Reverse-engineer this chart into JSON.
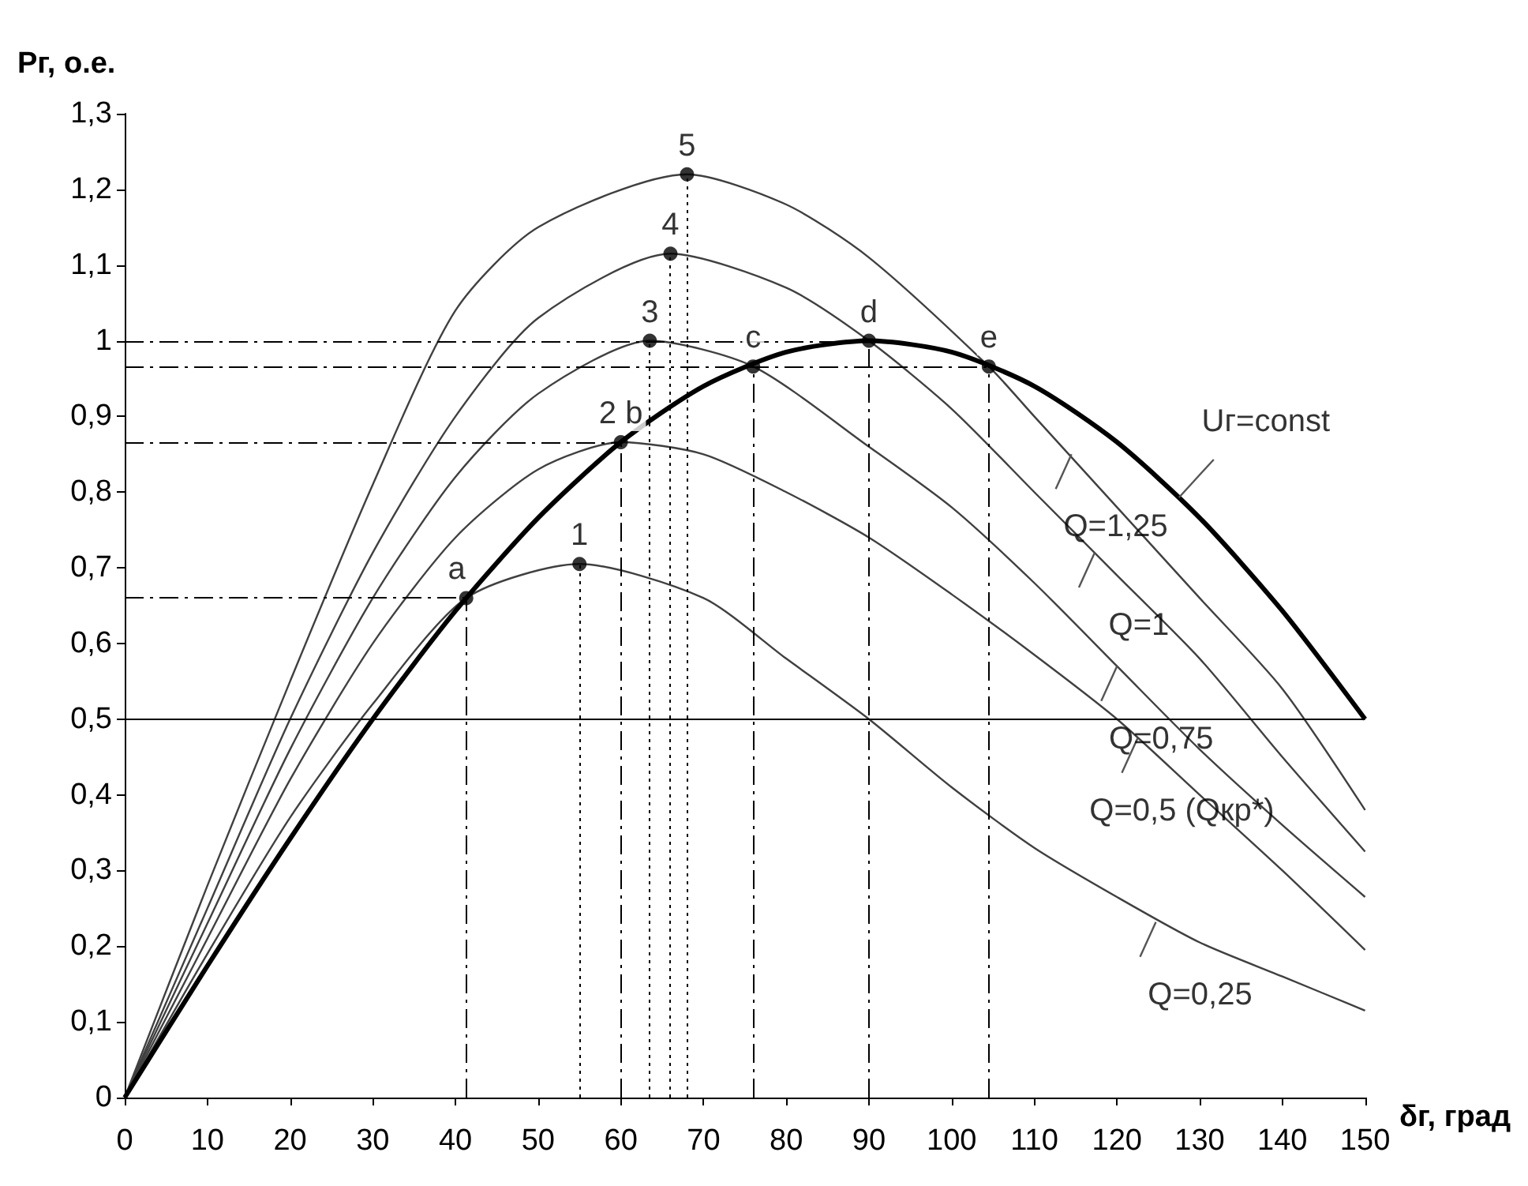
{
  "chart_data": {
    "type": "line",
    "ylabel": "Pг, о.е.",
    "xlabel": "δг, град",
    "xlim": [
      0,
      150
    ],
    "xticks": [
      0,
      10,
      20,
      30,
      40,
      50,
      60,
      70,
      80,
      90,
      100,
      110,
      120,
      130,
      140,
      150
    ],
    "ylim": [
      0,
      1.3
    ],
    "yticks": [
      0,
      {
        "value": 0.1,
        "label": "0,1"
      },
      {
        "value": 0.2,
        "label": "0,2"
      },
      {
        "value": 0.3,
        "label": "0,3"
      },
      {
        "value": 0.4,
        "label": "0,4"
      },
      {
        "value": 0.5,
        "label": "0,5"
      },
      {
        "value": 0.6,
        "label": "0,6"
      },
      {
        "value": 0.7,
        "label": "0,7"
      },
      {
        "value": 0.8,
        "label": "0,8"
      },
      {
        "value": 0.9,
        "label": "0,9"
      },
      1,
      {
        "value": 1.1,
        "label": "1,1"
      },
      {
        "value": 1.2,
        "label": "1,2"
      },
      {
        "value": 1.3,
        "label": "1,3"
      }
    ],
    "grid": false,
    "marker": "none",
    "series": [
      {
        "color": "#404040",
        "x": [
          0,
          10,
          20,
          30,
          41.3,
          55,
          70,
          80,
          90,
          100,
          110,
          120,
          130,
          140,
          150
        ],
        "values": [
          0,
          0.19,
          0.37,
          0.52,
          0.66,
          0.705,
          0.66,
          0.58,
          0.5,
          0.41,
          0.33,
          0.265,
          0.205,
          0.16,
          0.115
        ]
      },
      {
        "color": "#404040",
        "x": [
          0,
          10,
          20,
          30,
          40,
          50,
          60,
          70,
          80,
          90,
          100,
          110,
          120,
          130,
          140,
          150
        ],
        "values": [
          0,
          0.21,
          0.42,
          0.6,
          0.74,
          0.83,
          0.866,
          0.85,
          0.8,
          0.74,
          0.665,
          0.585,
          0.5,
          0.4,
          0.3,
          0.195
        ]
      },
      {
        "color": "#404040",
        "x": [
          0,
          10,
          20,
          30,
          40,
          50,
          63.5,
          76,
          90,
          100,
          110,
          120,
          130,
          140,
          150
        ],
        "values": [
          0,
          0.23,
          0.46,
          0.66,
          0.82,
          0.93,
          1,
          0.966,
          0.86,
          0.78,
          0.68,
          0.57,
          0.46,
          0.36,
          0.265
        ]
      },
      {
        "color": "#404040",
        "x": [
          0,
          10,
          20,
          30,
          40,
          50,
          66,
          80,
          90,
          100,
          110,
          120,
          130,
          140,
          150
        ],
        "values": [
          0,
          0.25,
          0.5,
          0.72,
          0.9,
          1.03,
          1.115,
          1.07,
          1,
          0.91,
          0.8,
          0.69,
          0.58,
          0.45,
          0.325
        ]
      },
      {
        "color": "#404040",
        "x": [
          0,
          10,
          20,
          30,
          40,
          50,
          68,
          80,
          90,
          104.5,
          110,
          120,
          130,
          140,
          150
        ],
        "values": [
          0,
          0.28,
          0.55,
          0.81,
          1.04,
          1.15,
          1.22,
          1.18,
          1.11,
          0.966,
          0.9,
          0.78,
          0.66,
          0.54,
          0.38
        ]
      },
      {
        "color": "#000000",
        "x": [
          0,
          10,
          20,
          30,
          40,
          50,
          60,
          70,
          80,
          90,
          100,
          110,
          120,
          130,
          140,
          150
        ],
        "values": [
          0,
          0.174,
          0.342,
          0.5,
          0.643,
          0.766,
          0.866,
          0.94,
          0.985,
          1,
          0.985,
          0.94,
          0.866,
          0.766,
          0.643,
          0.5
        ]
      },
      {
        "type": "scatter",
        "marker": "circle",
        "color": "#000000",
        "x": [
          41.3,
          55,
          60,
          63.5,
          66,
          68,
          76,
          90,
          104.5
        ],
        "values": [
          0.66,
          0.705,
          0.866,
          1,
          1.115,
          1.22,
          0.966,
          1,
          0.966
        ]
      }
    ],
    "ref_lines": [
      {
        "axis": "y",
        "value": 0.5,
        "line_style": "solid"
      },
      {
        "axis": "y",
        "value": 0.66,
        "line_style": "dashed"
      },
      {
        "axis": "y",
        "value": 0.866,
        "line_style": "dashed"
      },
      {
        "axis": "y",
        "value": 1,
        "line_style": "dashed"
      },
      {
        "axis": "y",
        "value": 0.966,
        "line_style": "dashed"
      },
      {
        "axis": "x",
        "value": 41.3,
        "line_style": "dashed"
      },
      {
        "axis": "x",
        "value": 60,
        "line_style": "dashed"
      },
      {
        "axis": "x",
        "value": 76,
        "line_style": "dashed"
      },
      {
        "axis": "x",
        "value": 90,
        "line_style": "dashed"
      },
      {
        "axis": "x",
        "value": 104.5,
        "line_style": "dashed"
      },
      {
        "axis": "x",
        "value": 55,
        "line_style": "dotted"
      },
      {
        "axis": "x",
        "value": 63.5,
        "line_style": "dotted"
      },
      {
        "axis": "x",
        "value": 66,
        "line_style": "dotted"
      },
      {
        "axis": "x",
        "value": 68,
        "line_style": "dotted"
      }
    ],
    "annotations": [
      {
        "text": "a",
        "x": 41.3,
        "y": 0.66
      },
      {
        "text": "1",
        "x": 55,
        "y": 0.705
      },
      {
        "text": "2 b",
        "x": 60,
        "y": 0.866
      },
      {
        "text": "3",
        "x": 63.5,
        "y": 1
      },
      {
        "text": "4",
        "x": 66,
        "y": 1.115
      },
      {
        "text": "5",
        "x": 68,
        "y": 1.22
      },
      {
        "text": "c",
        "x": 76,
        "y": 0.966
      },
      {
        "text": "d",
        "x": 90,
        "y": 1
      },
      {
        "text": "e",
        "x": 104.5,
        "y": 0.966
      },
      {
        "text": "Uг=const",
        "x": 127.5,
        "y": 0.793
      },
      {
        "text": "Q=1,25",
        "x": 114.5,
        "y": 0.85
      },
      {
        "text": "Q=1",
        "x": 117.3,
        "y": 0.72
      },
      {
        "text": "Q=0,75",
        "x": 120,
        "y": 0.57
      },
      {
        "text": "Q=0,5 (Qкр*)",
        "x": 122.5,
        "y": 0.475
      },
      {
        "text": "Q=0,25",
        "x": 124.7,
        "y": 0.232
      }
    ]
  }
}
